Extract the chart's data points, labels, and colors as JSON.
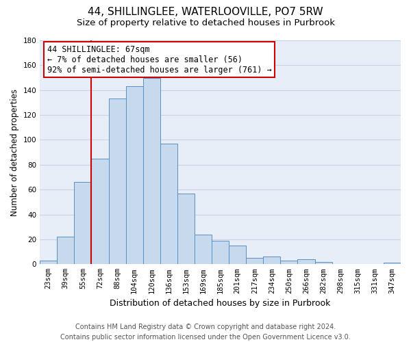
{
  "title": "44, SHILLINGLEE, WATERLOOVILLE, PO7 5RW",
  "subtitle": "Size of property relative to detached houses in Purbrook",
  "xlabel": "Distribution of detached houses by size in Purbrook",
  "ylabel": "Number of detached properties",
  "bar_labels": [
    "23sqm",
    "39sqm",
    "55sqm",
    "72sqm",
    "88sqm",
    "104sqm",
    "120sqm",
    "136sqm",
    "153sqm",
    "169sqm",
    "185sqm",
    "201sqm",
    "217sqm",
    "234sqm",
    "250sqm",
    "266sqm",
    "282sqm",
    "298sqm",
    "315sqm",
    "331sqm",
    "347sqm"
  ],
  "bar_heights": [
    3,
    22,
    66,
    85,
    133,
    143,
    150,
    97,
    57,
    24,
    19,
    15,
    5,
    6,
    3,
    4,
    2,
    0,
    0,
    0,
    1
  ],
  "bar_color": "#c7d9ed",
  "bar_edge_color": "#5a8fc2",
  "vline_x_index": 3,
  "vline_color": "#cc0000",
  "annotation_line1": "44 SHILLINGLEE: 67sqm",
  "annotation_line2": "← 7% of detached houses are smaller (56)",
  "annotation_line3": "92% of semi-detached houses are larger (761) →",
  "ylim": [
    0,
    180
  ],
  "yticks": [
    0,
    20,
    40,
    60,
    80,
    100,
    120,
    140,
    160,
    180
  ],
  "footer_line1": "Contains HM Land Registry data © Crown copyright and database right 2024.",
  "footer_line2": "Contains public sector information licensed under the Open Government Licence v3.0.",
  "bg_color": "#ffffff",
  "plot_bg_color": "#e8eef7",
  "grid_color": "#c8d4e4",
  "title_fontsize": 11,
  "subtitle_fontsize": 9.5,
  "xlabel_fontsize": 9,
  "ylabel_fontsize": 8.5,
  "tick_fontsize": 7.5,
  "annotation_fontsize": 8.5,
  "footer_fontsize": 7
}
